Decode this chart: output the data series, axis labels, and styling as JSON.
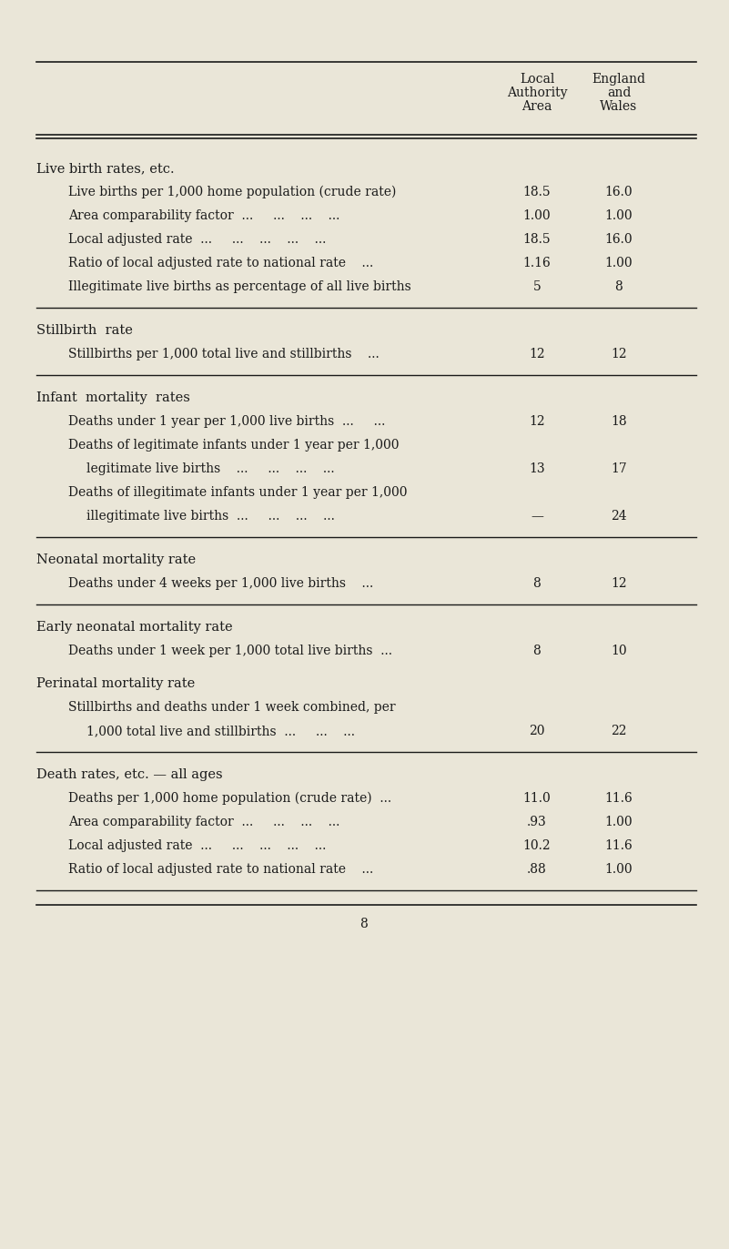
{
  "bg_color": "#eae6d8",
  "text_color": "#1a1a1a",
  "sections": [
    {
      "heading": "Live birth rates, etc.",
      "heading_italic": false,
      "rows": [
        {
          "indent": 1,
          "text": "Live births per 1,000 home population (crude rate)",
          "col1": "18.5",
          "col2": "16.0"
        },
        {
          "indent": 1,
          "text": "Area comparability factor  ...     ...    ...    ...",
          "col1": "1.00",
          "col2": "1.00"
        },
        {
          "indent": 1,
          "text": "Local adjusted rate  ...     ...    ...    ...    ...",
          "col1": "18.5",
          "col2": "16.0"
        },
        {
          "indent": 1,
          "text": "Ratio of local adjusted rate to national rate    ...",
          "col1": "1.16",
          "col2": "1.00"
        },
        {
          "indent": 1,
          "text": "Illegitimate live births as percentage of all live births",
          "col1": "5",
          "col2": "8"
        }
      ],
      "sep_after": true
    },
    {
      "heading": "Stillbirth  rate",
      "heading_italic": false,
      "rows": [
        {
          "indent": 1,
          "text": "Stillbirths per 1,000 total live and stillbirths    ...",
          "col1": "12",
          "col2": "12"
        }
      ],
      "sep_after": true
    },
    {
      "heading": "Infant  mortality  rates",
      "heading_italic": false,
      "rows": [
        {
          "indent": 1,
          "text": "Deaths under 1 year per 1,000 live births  ...     ...",
          "col1": "12",
          "col2": "18"
        },
        {
          "indent": 1,
          "text": "Deaths of legitimate infants under 1 year per 1,000",
          "col1": "",
          "col2": ""
        },
        {
          "indent": 2,
          "text": "legitimate live births    ...     ...    ...    ...",
          "col1": "13",
          "col2": "17"
        },
        {
          "indent": 1,
          "text": "Deaths of illegitimate infants under 1 year per 1,000",
          "col1": "",
          "col2": ""
        },
        {
          "indent": 2,
          "text": "illegitimate live births  ...     ...    ...    ...",
          "col1": "—",
          "col2": "24"
        }
      ],
      "sep_after": true
    },
    {
      "heading": "Neonatal mortality rate",
      "heading_italic": false,
      "rows": [
        {
          "indent": 1,
          "text": "Deaths under 4 weeks per 1,000 live births    ...",
          "col1": "8",
          "col2": "12"
        }
      ],
      "sep_after": true
    },
    {
      "heading": "Early neonatal mortality rate",
      "heading_italic": false,
      "rows": [
        {
          "indent": 1,
          "text": "Deaths under 1 week per 1,000 total live births  ...",
          "col1": "8",
          "col2": "10"
        }
      ],
      "sep_after": false
    },
    {
      "heading": "Perinatal mortality rate",
      "heading_italic": false,
      "rows": [
        {
          "indent": 1,
          "text": "Stillbirths and deaths under 1 week combined, per",
          "col1": "",
          "col2": ""
        },
        {
          "indent": 2,
          "text": "1,000 total live and stillbirths  ...     ...    ...",
          "col1": "20",
          "col2": "22"
        }
      ],
      "sep_after": true
    },
    {
      "heading": "Death rates, etc. — all ages",
      "heading_italic": false,
      "rows": [
        {
          "indent": 1,
          "text": "Deaths per 1,000 home population (crude rate)  ...",
          "col1": "11.0",
          "col2": "11.6"
        },
        {
          "indent": 1,
          "text": "Area comparability factor  ...     ...    ...    ...",
          "col1": ".93",
          "col2": "1.00"
        },
        {
          "indent": 1,
          "text": "Local adjusted rate  ...     ...    ...    ...    ...",
          "col1": "10.2",
          "col2": "11.6"
        },
        {
          "indent": 1,
          "text": "Ratio of local adjusted rate to national rate    ...",
          "col1": ".88",
          "col2": "1.00"
        }
      ],
      "sep_after": true
    }
  ],
  "page_number": "8"
}
